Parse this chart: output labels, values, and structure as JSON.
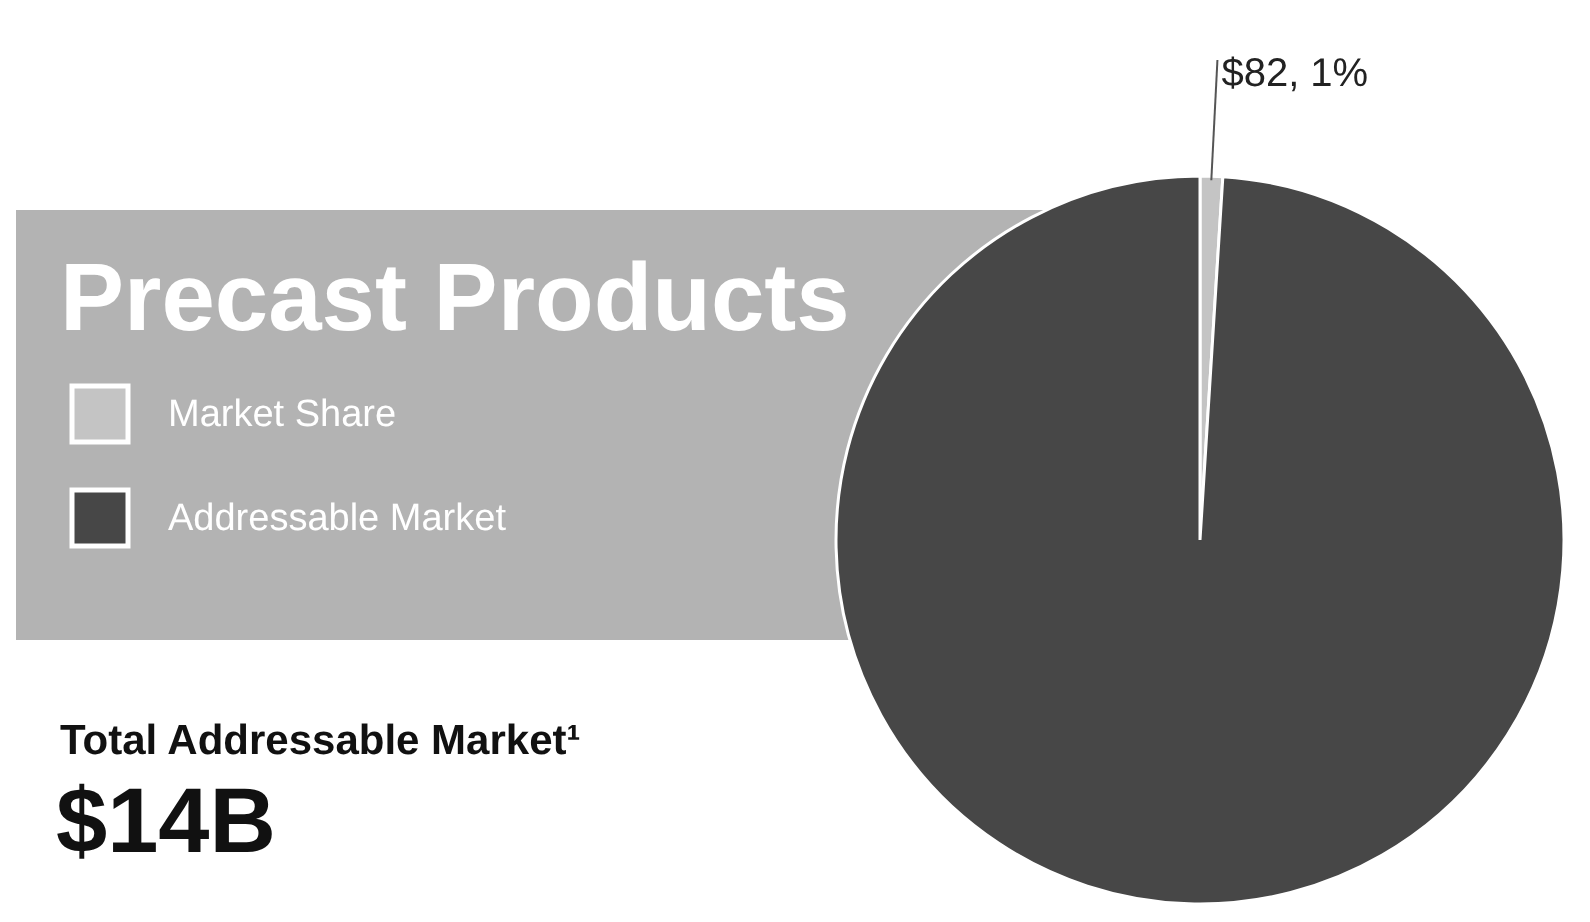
{
  "chart_data": {
    "type": "pie",
    "title": "Precast Products",
    "categories": [
      "Market Share",
      "Addressable Market"
    ],
    "values": [
      1,
      99
    ],
    "colors": [
      "#c4c4c4",
      "#474747"
    ],
    "value_labels": [
      "$82, 1%",
      null
    ],
    "legend": "left",
    "annotations": [
      "Total Addressable Market¹",
      "$14B"
    ]
  }
}
